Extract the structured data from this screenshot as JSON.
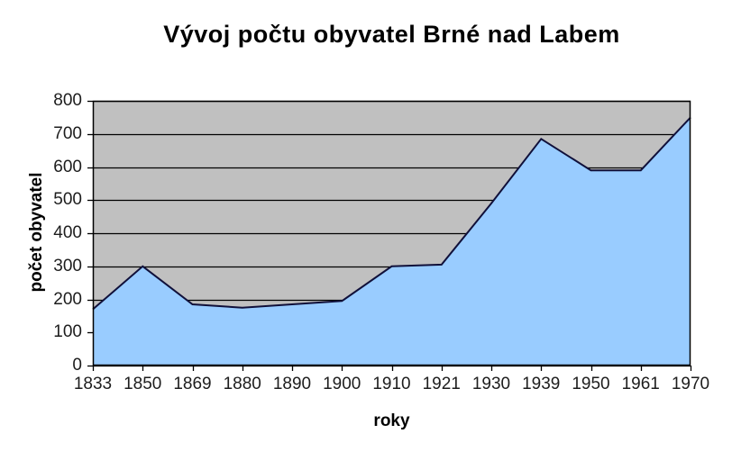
{
  "chart_data": {
    "type": "area",
    "title": "Vývoj počtu obyvatel Brné nad Labem",
    "xlabel": "roky",
    "ylabel": "počet obyvatel",
    "categories": [
      "1833",
      "1850",
      "1869",
      "1880",
      "1890",
      "1900",
      "1910",
      "1921",
      "1930",
      "1939",
      "1950",
      "1961",
      "1970"
    ],
    "series": [
      {
        "name": "počet obyvatel",
        "values": [
          170,
          300,
          185,
          175,
          185,
          195,
          300,
          305,
          490,
          685,
          590,
          590,
          750
        ]
      }
    ],
    "ylim": [
      0,
      800
    ],
    "y_tick_step": 100,
    "y_ticks": [
      "0",
      "100",
      "200",
      "300",
      "400",
      "500",
      "600",
      "700",
      "800"
    ],
    "grid": "horizontal-only",
    "legend": "none",
    "colors": {
      "page_background": "#FFFFFF",
      "plot_background": "#C0C0C0",
      "area_fill": "#99CCFF",
      "area_line": "#10103A",
      "gridline": "#000000",
      "axis": "#000000",
      "tick_text": "#1D1D1D",
      "title_text": "#000000"
    }
  }
}
